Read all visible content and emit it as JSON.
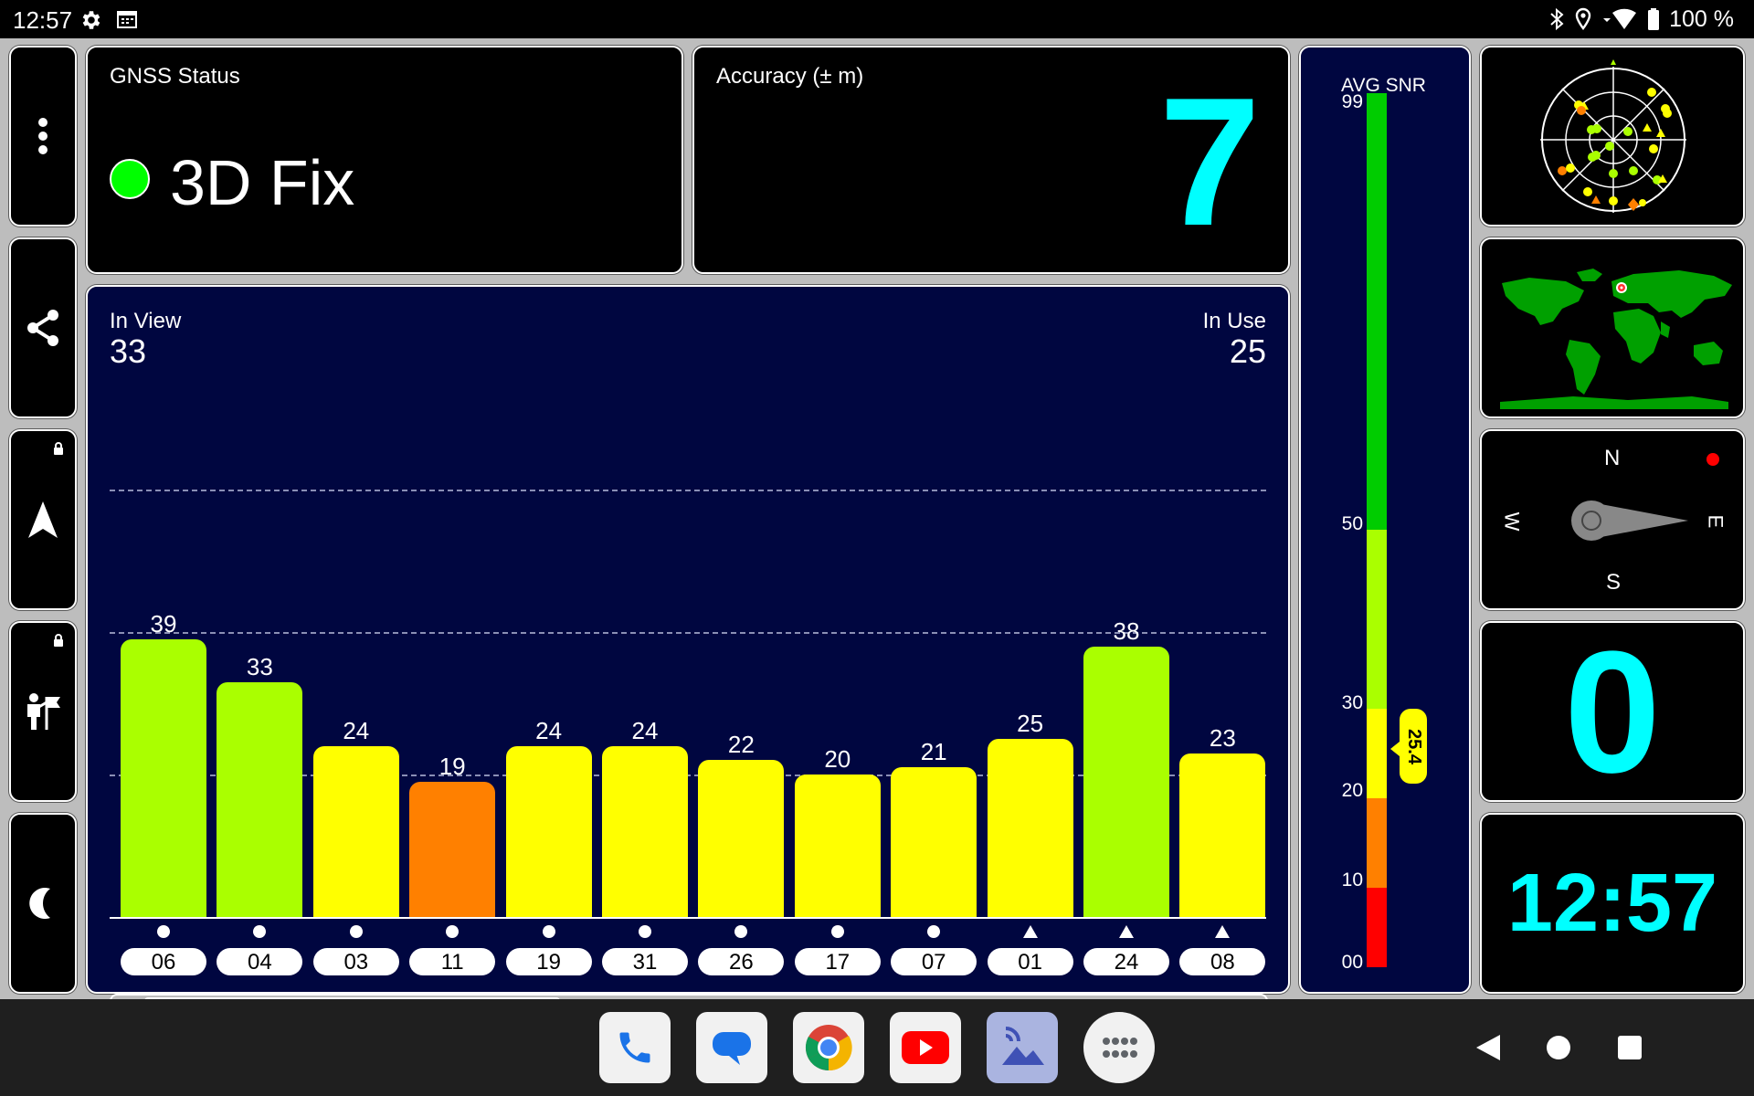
{
  "status_bar": {
    "time": "12:57",
    "battery": "100 %",
    "icons": [
      "gear-icon",
      "calendar-icon",
      "bluetooth-icon",
      "location-icon",
      "wifi-icon",
      "battery-icon"
    ]
  },
  "sidebar": {
    "items": [
      {
        "name": "more-menu",
        "icon": "more-vert-icon"
      },
      {
        "name": "share",
        "icon": "share-icon"
      },
      {
        "name": "navigation",
        "icon": "navigation-arrow-icon",
        "locked": true
      },
      {
        "name": "hiker",
        "icon": "person-flag-icon",
        "locked": true
      },
      {
        "name": "night-mode",
        "icon": "moon-icon"
      }
    ]
  },
  "gnss_status": {
    "label": "GNSS Status",
    "value": "3D Fix",
    "indicator_color": "#00ff00"
  },
  "accuracy": {
    "label": "Accuracy (± m)",
    "value": "7",
    "value_color": "#00ffff"
  },
  "satellites": {
    "in_view_label": "In View",
    "in_view": "33",
    "in_use_label": "In Use",
    "in_use": "25",
    "scroll_fraction": 0.36
  },
  "chart_data": {
    "type": "bar",
    "title": "",
    "categories": [
      "06",
      "04",
      "03",
      "11",
      "19",
      "31",
      "26",
      "17",
      "07",
      "01",
      "24",
      "08"
    ],
    "values": [
      39,
      33,
      24,
      19,
      24,
      24,
      22,
      20,
      21,
      25,
      38,
      23
    ],
    "markers": [
      "circle",
      "circle",
      "circle",
      "circle",
      "circle",
      "circle",
      "circle",
      "circle",
      "circle",
      "triangle",
      "triangle",
      "triangle"
    ],
    "ylim": [
      0,
      60
    ],
    "gridlines": [
      20,
      40,
      60
    ],
    "color_scale": {
      "under_20": "#ff8000",
      "20_to_30": "#ffff00",
      "over_30": "#aaff00"
    }
  },
  "avg_snr": {
    "label": "AVG SNR",
    "value": "25.4",
    "ticks": [
      "99",
      "50",
      "30",
      "20",
      "10",
      "00"
    ],
    "colors": {
      "red": "#ff0000",
      "orange": "#ff8000",
      "yellow": "#ffff00",
      "yellowgreen": "#aaff00",
      "green": "#00cc00"
    }
  },
  "compass": {
    "north": "N",
    "south": "S",
    "east": "E",
    "west": "W",
    "heading_degrees": 90
  },
  "speed": {
    "value": "0",
    "color": "#00ffff"
  },
  "clock": {
    "value": "12:57",
    "color": "#00ffff"
  },
  "nav_bar": {
    "apps": [
      "phone-app-icon",
      "messages-app-icon",
      "chrome-app-icon",
      "youtube-app-icon",
      "gallery-app-icon",
      "app-drawer-icon"
    ],
    "buttons": [
      "back-button",
      "home-button",
      "recents-button"
    ]
  }
}
